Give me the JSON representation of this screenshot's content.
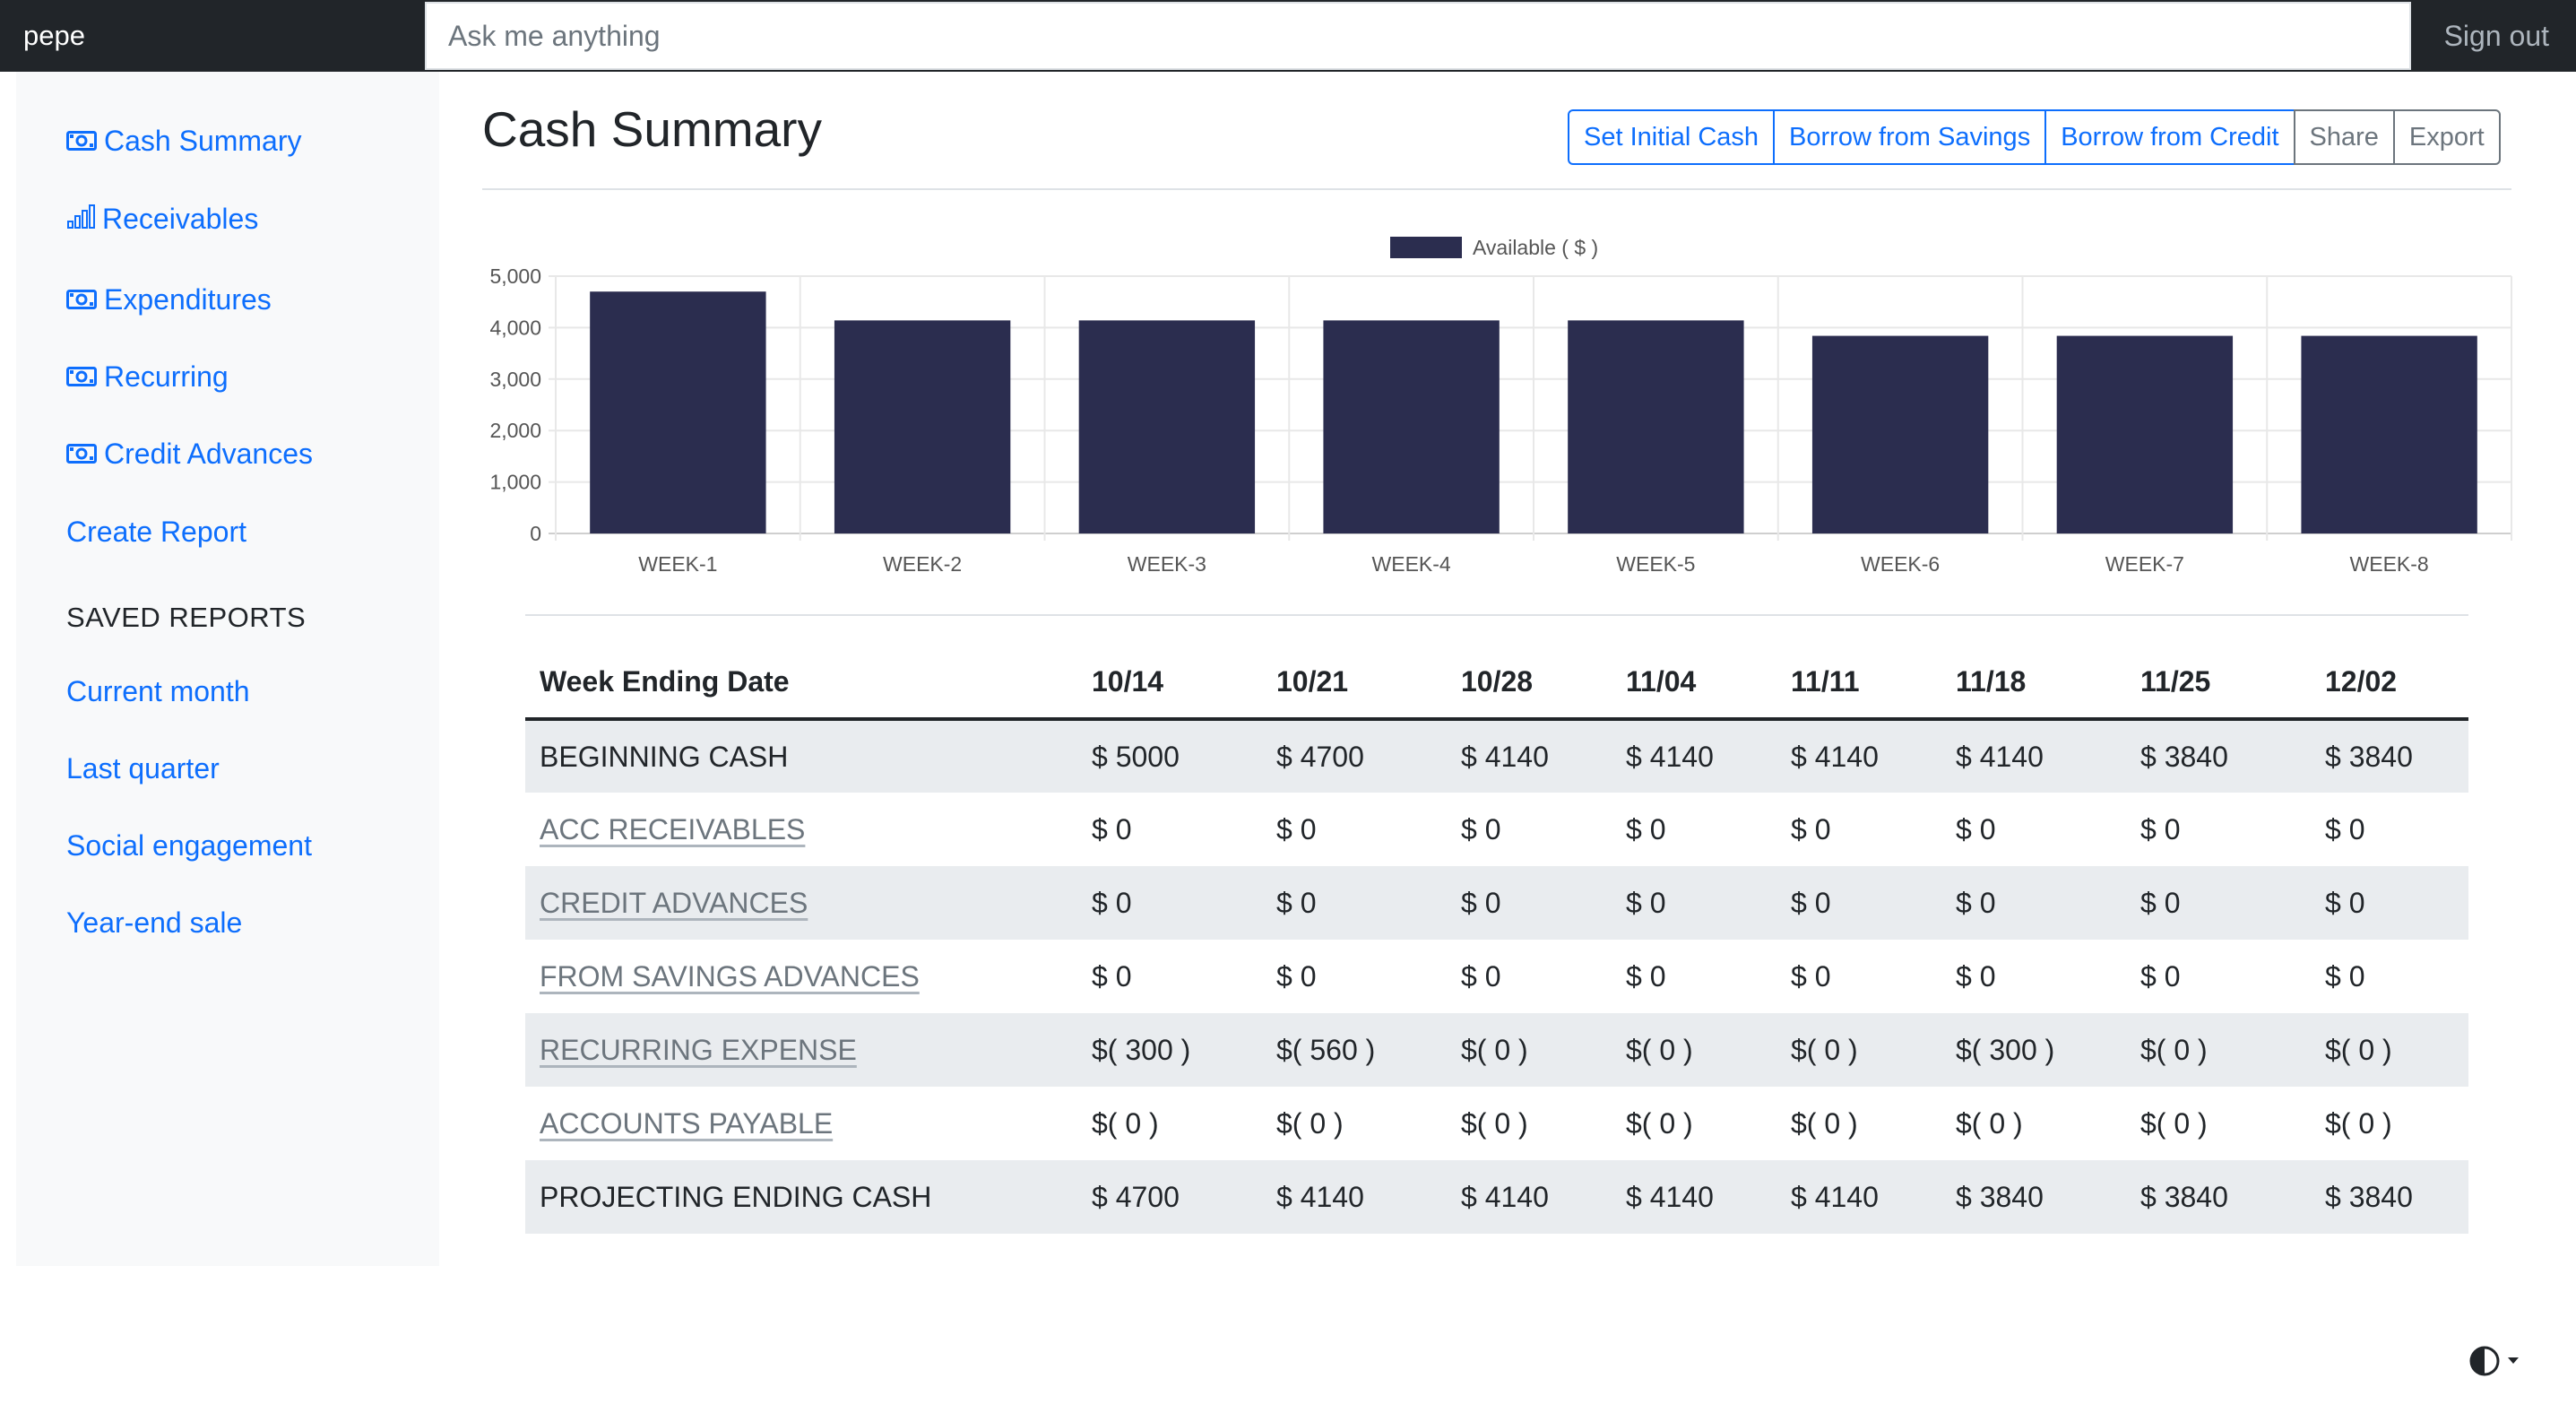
{
  "navbar": {
    "brand": "pepe",
    "search_placeholder": "Ask me anything",
    "signout_label": "Sign out"
  },
  "sidebar": {
    "items": [
      {
        "label": "Cash Summary",
        "icon": "cash-icon"
      },
      {
        "label": "Receivables",
        "icon": "bar-chart-icon"
      },
      {
        "label": "Expenditures",
        "icon": "cash-icon"
      },
      {
        "label": "Recurring",
        "icon": "cash-icon"
      },
      {
        "label": "Credit Advances",
        "icon": "cash-icon"
      },
      {
        "label": "Create Report",
        "icon": ""
      }
    ],
    "saved_heading": "SAVED REPORTS",
    "saved_reports": [
      "Current month",
      "Last quarter",
      "Social engagement",
      "Year-end sale"
    ]
  },
  "main": {
    "title": "Cash Summary",
    "buttons": {
      "set_initial_cash": "Set Initial Cash",
      "borrow_savings": "Borrow from Savings",
      "borrow_credit": "Borrow from Credit",
      "share": "Share",
      "export": "Export"
    }
  },
  "colors": {
    "bar": "#2b2d4f",
    "link": "#0d6efd",
    "navbar": "#212529"
  },
  "chart_data": {
    "type": "bar",
    "categories": [
      "WEEK-1",
      "WEEK-2",
      "WEEK-3",
      "WEEK-4",
      "WEEK-5",
      "WEEK-6",
      "WEEK-7",
      "WEEK-8"
    ],
    "series": [
      {
        "name": "Available ( $ )",
        "values": [
          4700,
          4140,
          4140,
          4140,
          4140,
          3840,
          3840,
          3840
        ]
      }
    ],
    "ylim": [
      0,
      5000
    ],
    "yticks": [
      "0",
      "1,000",
      "2,000",
      "3,000",
      "4,000",
      "5,000"
    ],
    "grid": true,
    "legend": "top-center"
  },
  "table": {
    "header_label": "Week Ending Date",
    "dates": [
      "10/14",
      "10/21",
      "10/28",
      "11/04",
      "11/11",
      "11/18",
      "11/25",
      "12/02"
    ],
    "rows": [
      {
        "label": "BEGINNING CASH",
        "link": false,
        "striped": true,
        "values": [
          "$ 5000",
          "$ 4700",
          "$ 4140",
          "$ 4140",
          "$ 4140",
          "$ 4140",
          "$ 3840",
          "$ 3840"
        ]
      },
      {
        "label": "ACC RECEIVABLES",
        "link": true,
        "striped": false,
        "values": [
          "$ 0",
          "$ 0",
          "$ 0",
          "$ 0",
          "$ 0",
          "$ 0",
          "$ 0",
          "$ 0"
        ]
      },
      {
        "label": "CREDIT ADVANCES",
        "link": true,
        "striped": true,
        "values": [
          "$ 0",
          "$ 0",
          "$ 0",
          "$ 0",
          "$ 0",
          "$ 0",
          "$ 0",
          "$ 0"
        ]
      },
      {
        "label": "FROM SAVINGS ADVANCES",
        "link": true,
        "striped": false,
        "values": [
          "$ 0",
          "$ 0",
          "$ 0",
          "$ 0",
          "$ 0",
          "$ 0",
          "$ 0",
          "$ 0"
        ]
      },
      {
        "label": "RECURRING EXPENSE",
        "link": true,
        "striped": true,
        "values": [
          "$( 300 )",
          "$( 560 )",
          "$( 0 )",
          "$( 0 )",
          "$( 0 )",
          "$( 300 )",
          "$( 0 )",
          "$( 0 )"
        ]
      },
      {
        "label": "ACCOUNTS PAYABLE",
        "link": true,
        "striped": false,
        "values": [
          "$( 0 )",
          "$( 0 )",
          "$( 0 )",
          "$( 0 )",
          "$( 0 )",
          "$( 0 )",
          "$( 0 )",
          "$( 0 )"
        ]
      },
      {
        "label": "PROJECTING ENDING CASH",
        "link": false,
        "striped": true,
        "values": [
          "$ 4700",
          "$ 4140",
          "$ 4140",
          "$ 4140",
          "$ 4140",
          "$ 3840",
          "$ 3840",
          "$ 3840"
        ]
      }
    ]
  },
  "theme_toggle_icon": "contrast-icon"
}
